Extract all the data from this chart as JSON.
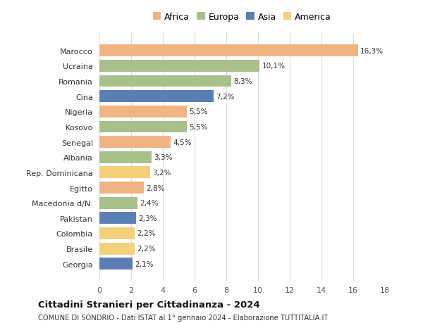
{
  "countries": [
    "Marocco",
    "Ucraina",
    "Romania",
    "Cina",
    "Nigeria",
    "Kosovo",
    "Senegal",
    "Albania",
    "Rep. Dominicana",
    "Egitto",
    "Macedonia d/N.",
    "Pakistan",
    "Colombia",
    "Brasile",
    "Georgia"
  ],
  "values": [
    16.3,
    10.1,
    8.3,
    7.2,
    5.5,
    5.5,
    4.5,
    3.3,
    3.2,
    2.8,
    2.4,
    2.3,
    2.2,
    2.2,
    2.1
  ],
  "labels": [
    "16,3%",
    "10,1%",
    "8,3%",
    "7,2%",
    "5,5%",
    "5,5%",
    "4,5%",
    "3,3%",
    "3,2%",
    "2,8%",
    "2,4%",
    "2,3%",
    "2,2%",
    "2,2%",
    "2,1%"
  ],
  "continents": [
    "Africa",
    "Europa",
    "Europa",
    "Asia",
    "Africa",
    "Europa",
    "Africa",
    "Europa",
    "America",
    "Africa",
    "Europa",
    "Asia",
    "America",
    "America",
    "Asia"
  ],
  "colors": {
    "Africa": "#F0B483",
    "Europa": "#A8C08A",
    "Asia": "#5B7FB5",
    "America": "#F5D07A"
  },
  "legend_labels": [
    "Africa",
    "Europa",
    "Asia",
    "America"
  ],
  "legend_colors": [
    "#F0B483",
    "#A8C08A",
    "#5B7FB5",
    "#F5D07A"
  ],
  "title": "Cittadini Stranieri per Cittadinanza - 2024",
  "subtitle": "COMUNE DI SONDRIO - Dati ISTAT al 1° gennaio 2024 - Elaborazione TUTTITALIA.IT",
  "xlim": [
    0,
    18
  ],
  "xticks": [
    0,
    2,
    4,
    6,
    8,
    10,
    12,
    14,
    16,
    18
  ],
  "background_color": "#ffffff",
  "grid_color": "#dddddd"
}
